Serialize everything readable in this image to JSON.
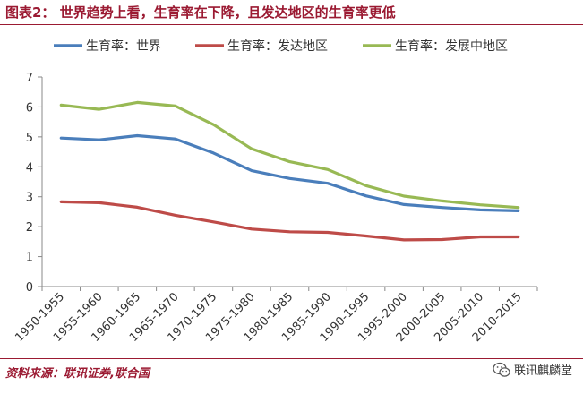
{
  "chart_data": {
    "type": "line",
    "title": "图表2： 世界趋势上看，生育率在下降，且发达地区的生育率更低",
    "xlabel": "",
    "ylabel": "",
    "categories": [
      "1950-1955",
      "1955-1960",
      "1960-1965",
      "1965-1970",
      "1970-1975",
      "1975-1980",
      "1980-1985",
      "1985-1990",
      "1990-1995",
      "1995-2000",
      "2000-2005",
      "2005-2010",
      "2010-2015"
    ],
    "series": [
      {
        "name": "生育率：世界",
        "color": "#4a7ebb",
        "values": [
          4.96,
          4.9,
          5.04,
          4.93,
          4.46,
          3.87,
          3.61,
          3.45,
          3.03,
          2.74,
          2.64,
          2.56,
          2.53
        ]
      },
      {
        "name": "生育率：发达地区",
        "color": "#be4b48",
        "values": [
          2.83,
          2.8,
          2.65,
          2.38,
          2.16,
          1.92,
          1.83,
          1.81,
          1.69,
          1.56,
          1.57,
          1.66,
          1.66
        ]
      },
      {
        "name": "生育率：发展中地区",
        "color": "#98b954",
        "values": [
          6.06,
          5.92,
          6.15,
          6.03,
          5.41,
          4.6,
          4.17,
          3.91,
          3.37,
          3.02,
          2.86,
          2.73,
          2.64
        ]
      }
    ],
    "ylim": [
      0,
      7
    ],
    "yticks": [
      0,
      1,
      2,
      3,
      4,
      5,
      6,
      7
    ],
    "grid": false,
    "legend": "top"
  },
  "footer": {
    "source": "资料来源：联讯证券,联合国",
    "brand": "联讯麒麟堂",
    "brand_icon": "wechat-icon"
  }
}
